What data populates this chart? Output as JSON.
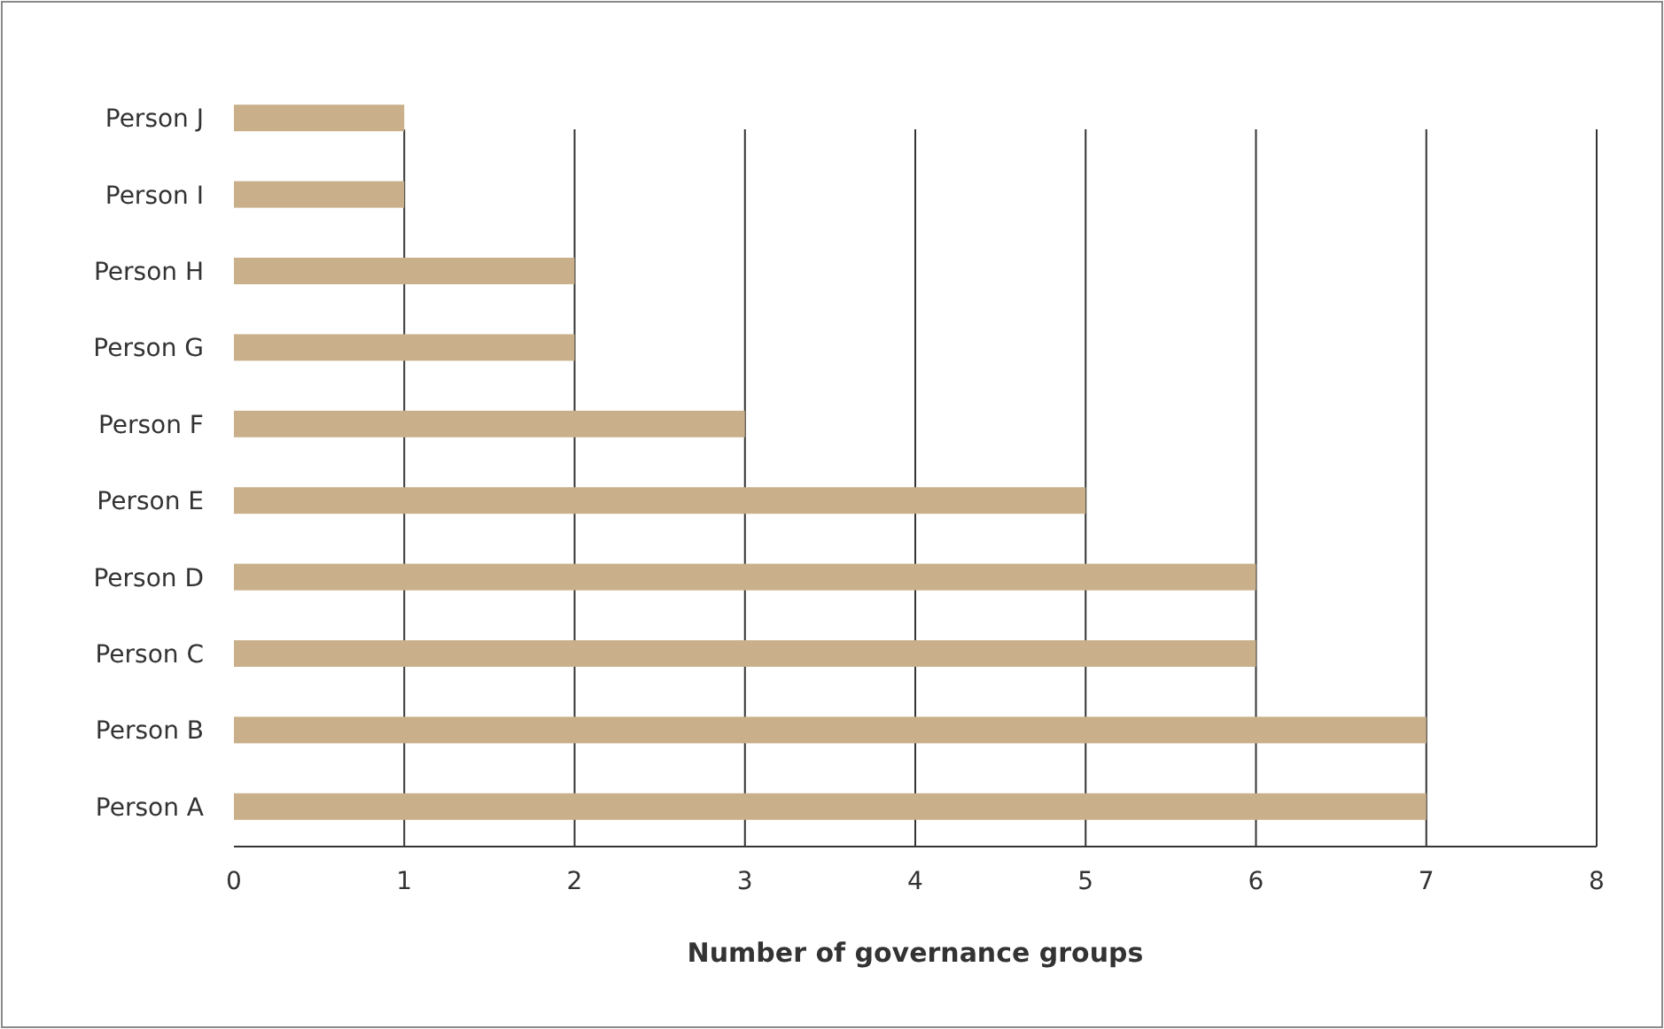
{
  "chart_data": {
    "type": "bar",
    "orientation": "horizontal",
    "xlabel": "Number of governance groups",
    "categories": [
      "Person J",
      "Person I",
      "Person H",
      "Person G",
      "Person F",
      "Person E",
      "Person D",
      "Person C",
      "Person B",
      "Person A"
    ],
    "values": [
      1,
      1,
      2,
      2,
      3,
      5,
      6,
      6,
      7,
      7
    ],
    "color": "#c9b08a",
    "xlim": [
      0,
      8
    ],
    "xticks": [
      0,
      1,
      2,
      3,
      4,
      5,
      6,
      7,
      8
    ],
    "grid": "x"
  }
}
